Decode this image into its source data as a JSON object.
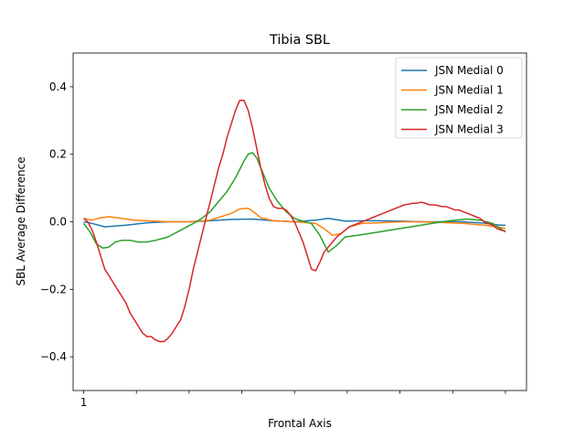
{
  "chart_data": {
    "type": "line",
    "title": "Tibia SBL",
    "xlabel": "Frontal Axis",
    "ylabel": "SBL Average Difference",
    "xlim": [
      0,
      100
    ],
    "ylim": [
      -0.5,
      0.5
    ],
    "yticks": [
      -0.4,
      -0.2,
      0.0,
      0.2,
      0.4
    ],
    "ytick_labels": [
      "−0.4",
      "−0.2",
      "0.0",
      "0.2",
      "0.4"
    ],
    "xticks": [
      0,
      12.5,
      25,
      37.5,
      50,
      62.5,
      75,
      87.5,
      100
    ],
    "xtick_labels": [
      "1",
      "",
      "",
      "",
      "",
      "",
      "",
      "",
      ""
    ],
    "legend_position": "top-right",
    "grid": false,
    "series": [
      {
        "name": "JSN Medial 0",
        "color": "#1f77b4",
        "x": [
          0,
          2,
          5,
          10,
          15,
          20,
          25,
          30,
          35,
          40,
          45,
          50,
          52,
          55,
          58,
          62,
          66,
          70,
          75,
          80,
          85,
          90,
          95,
          97,
          99,
          100
        ],
        "y": [
          0.0,
          -0.005,
          -0.015,
          -0.01,
          -0.003,
          0.0,
          0.0,
          0.003,
          0.007,
          0.008,
          0.003,
          0.0,
          0.002,
          0.005,
          0.01,
          0.002,
          0.003,
          0.003,
          0.002,
          0.0,
          0.0,
          0.0,
          -0.004,
          -0.008,
          -0.01,
          -0.01
        ]
      },
      {
        "name": "JSN Medial 1",
        "color": "#ff7f0e",
        "x": [
          0,
          2,
          4,
          6,
          9,
          12,
          15,
          20,
          25,
          30,
          35,
          37,
          39,
          40,
          42,
          45,
          50,
          55,
          57,
          59,
          61,
          63,
          66,
          70,
          75,
          80,
          85,
          90,
          95,
          98,
          100
        ],
        "y": [
          0.01,
          0.005,
          0.012,
          0.015,
          0.01,
          0.005,
          0.003,
          0.0,
          0.0,
          0.005,
          0.025,
          0.038,
          0.04,
          0.032,
          0.012,
          0.003,
          0.0,
          -0.005,
          -0.02,
          -0.04,
          -0.035,
          -0.015,
          -0.005,
          -0.003,
          0.0,
          0.0,
          -0.002,
          -0.005,
          -0.01,
          -0.015,
          -0.02
        ]
      },
      {
        "name": "JSN Medial 2",
        "color": "#2ca02c",
        "x": [
          0,
          1.5,
          3,
          4.5,
          6,
          7.5,
          9,
          11,
          13,
          15,
          17,
          20,
          23,
          26,
          28,
          30,
          32,
          34,
          36,
          38,
          39,
          40,
          41,
          42,
          44,
          46,
          48,
          50,
          52,
          54,
          56,
          58,
          60,
          62,
          65,
          70,
          75,
          80,
          85,
          88,
          91,
          94,
          97,
          100
        ],
        "y": [
          -0.005,
          -0.03,
          -0.065,
          -0.078,
          -0.075,
          -0.06,
          -0.055,
          -0.055,
          -0.06,
          -0.06,
          -0.055,
          -0.045,
          -0.025,
          -0.005,
          0.01,
          0.03,
          0.06,
          0.09,
          0.13,
          0.18,
          0.2,
          0.205,
          0.19,
          0.16,
          0.1,
          0.06,
          0.03,
          0.01,
          0.002,
          -0.005,
          -0.04,
          -0.09,
          -0.07,
          -0.045,
          -0.04,
          -0.03,
          -0.02,
          -0.01,
          0.0,
          0.005,
          0.008,
          0.005,
          -0.005,
          -0.03
        ]
      },
      {
        "name": "JSN Medial 3",
        "color": "#d62728",
        "x": [
          0,
          1,
          2,
          3,
          4,
          5,
          6,
          7,
          8,
          9,
          10,
          11,
          12,
          13,
          14,
          15,
          16,
          17,
          18,
          19,
          20,
          21,
          22,
          23,
          24,
          25,
          26,
          27,
          28,
          29,
          30,
          31,
          32,
          33,
          34,
          35,
          36,
          37,
          38,
          39,
          40,
          41,
          42,
          43,
          44,
          45,
          46,
          47,
          48,
          49,
          50,
          51,
          52,
          53,
          54,
          55,
          56,
          57,
          58,
          59,
          60,
          61,
          62,
          63,
          64,
          65,
          66,
          67,
          68,
          69,
          70,
          71,
          72,
          73,
          74,
          75,
          76,
          77,
          78,
          79,
          80,
          81,
          82,
          83,
          84,
          85,
          86,
          87,
          88,
          89,
          90,
          91,
          92,
          93,
          94,
          95,
          96,
          97,
          98,
          99,
          100
        ],
        "y": [
          0.01,
          0.0,
          -0.025,
          -0.06,
          -0.1,
          -0.14,
          -0.16,
          -0.18,
          -0.2,
          -0.22,
          -0.24,
          -0.27,
          -0.29,
          -0.31,
          -0.33,
          -0.34,
          -0.34,
          -0.35,
          -0.355,
          -0.355,
          -0.345,
          -0.33,
          -0.31,
          -0.29,
          -0.25,
          -0.2,
          -0.14,
          -0.09,
          -0.04,
          0.01,
          0.06,
          0.11,
          0.16,
          0.2,
          0.25,
          0.29,
          0.33,
          0.36,
          0.36,
          0.33,
          0.28,
          0.22,
          0.16,
          0.11,
          0.07,
          0.045,
          0.04,
          0.04,
          0.035,
          0.02,
          0.0,
          -0.03,
          -0.06,
          -0.1,
          -0.14,
          -0.145,
          -0.12,
          -0.09,
          -0.075,
          -0.06,
          -0.045,
          -0.035,
          -0.025,
          -0.015,
          -0.01,
          -0.005,
          0.0,
          0.005,
          0.01,
          0.015,
          0.02,
          0.025,
          0.03,
          0.035,
          0.04,
          0.045,
          0.05,
          0.052,
          0.055,
          0.055,
          0.058,
          0.055,
          0.05,
          0.05,
          0.048,
          0.045,
          0.045,
          0.04,
          0.035,
          0.035,
          0.03,
          0.025,
          0.02,
          0.015,
          0.01,
          0.0,
          -0.005,
          -0.01,
          -0.02,
          -0.025,
          -0.028
        ]
      }
    ]
  }
}
